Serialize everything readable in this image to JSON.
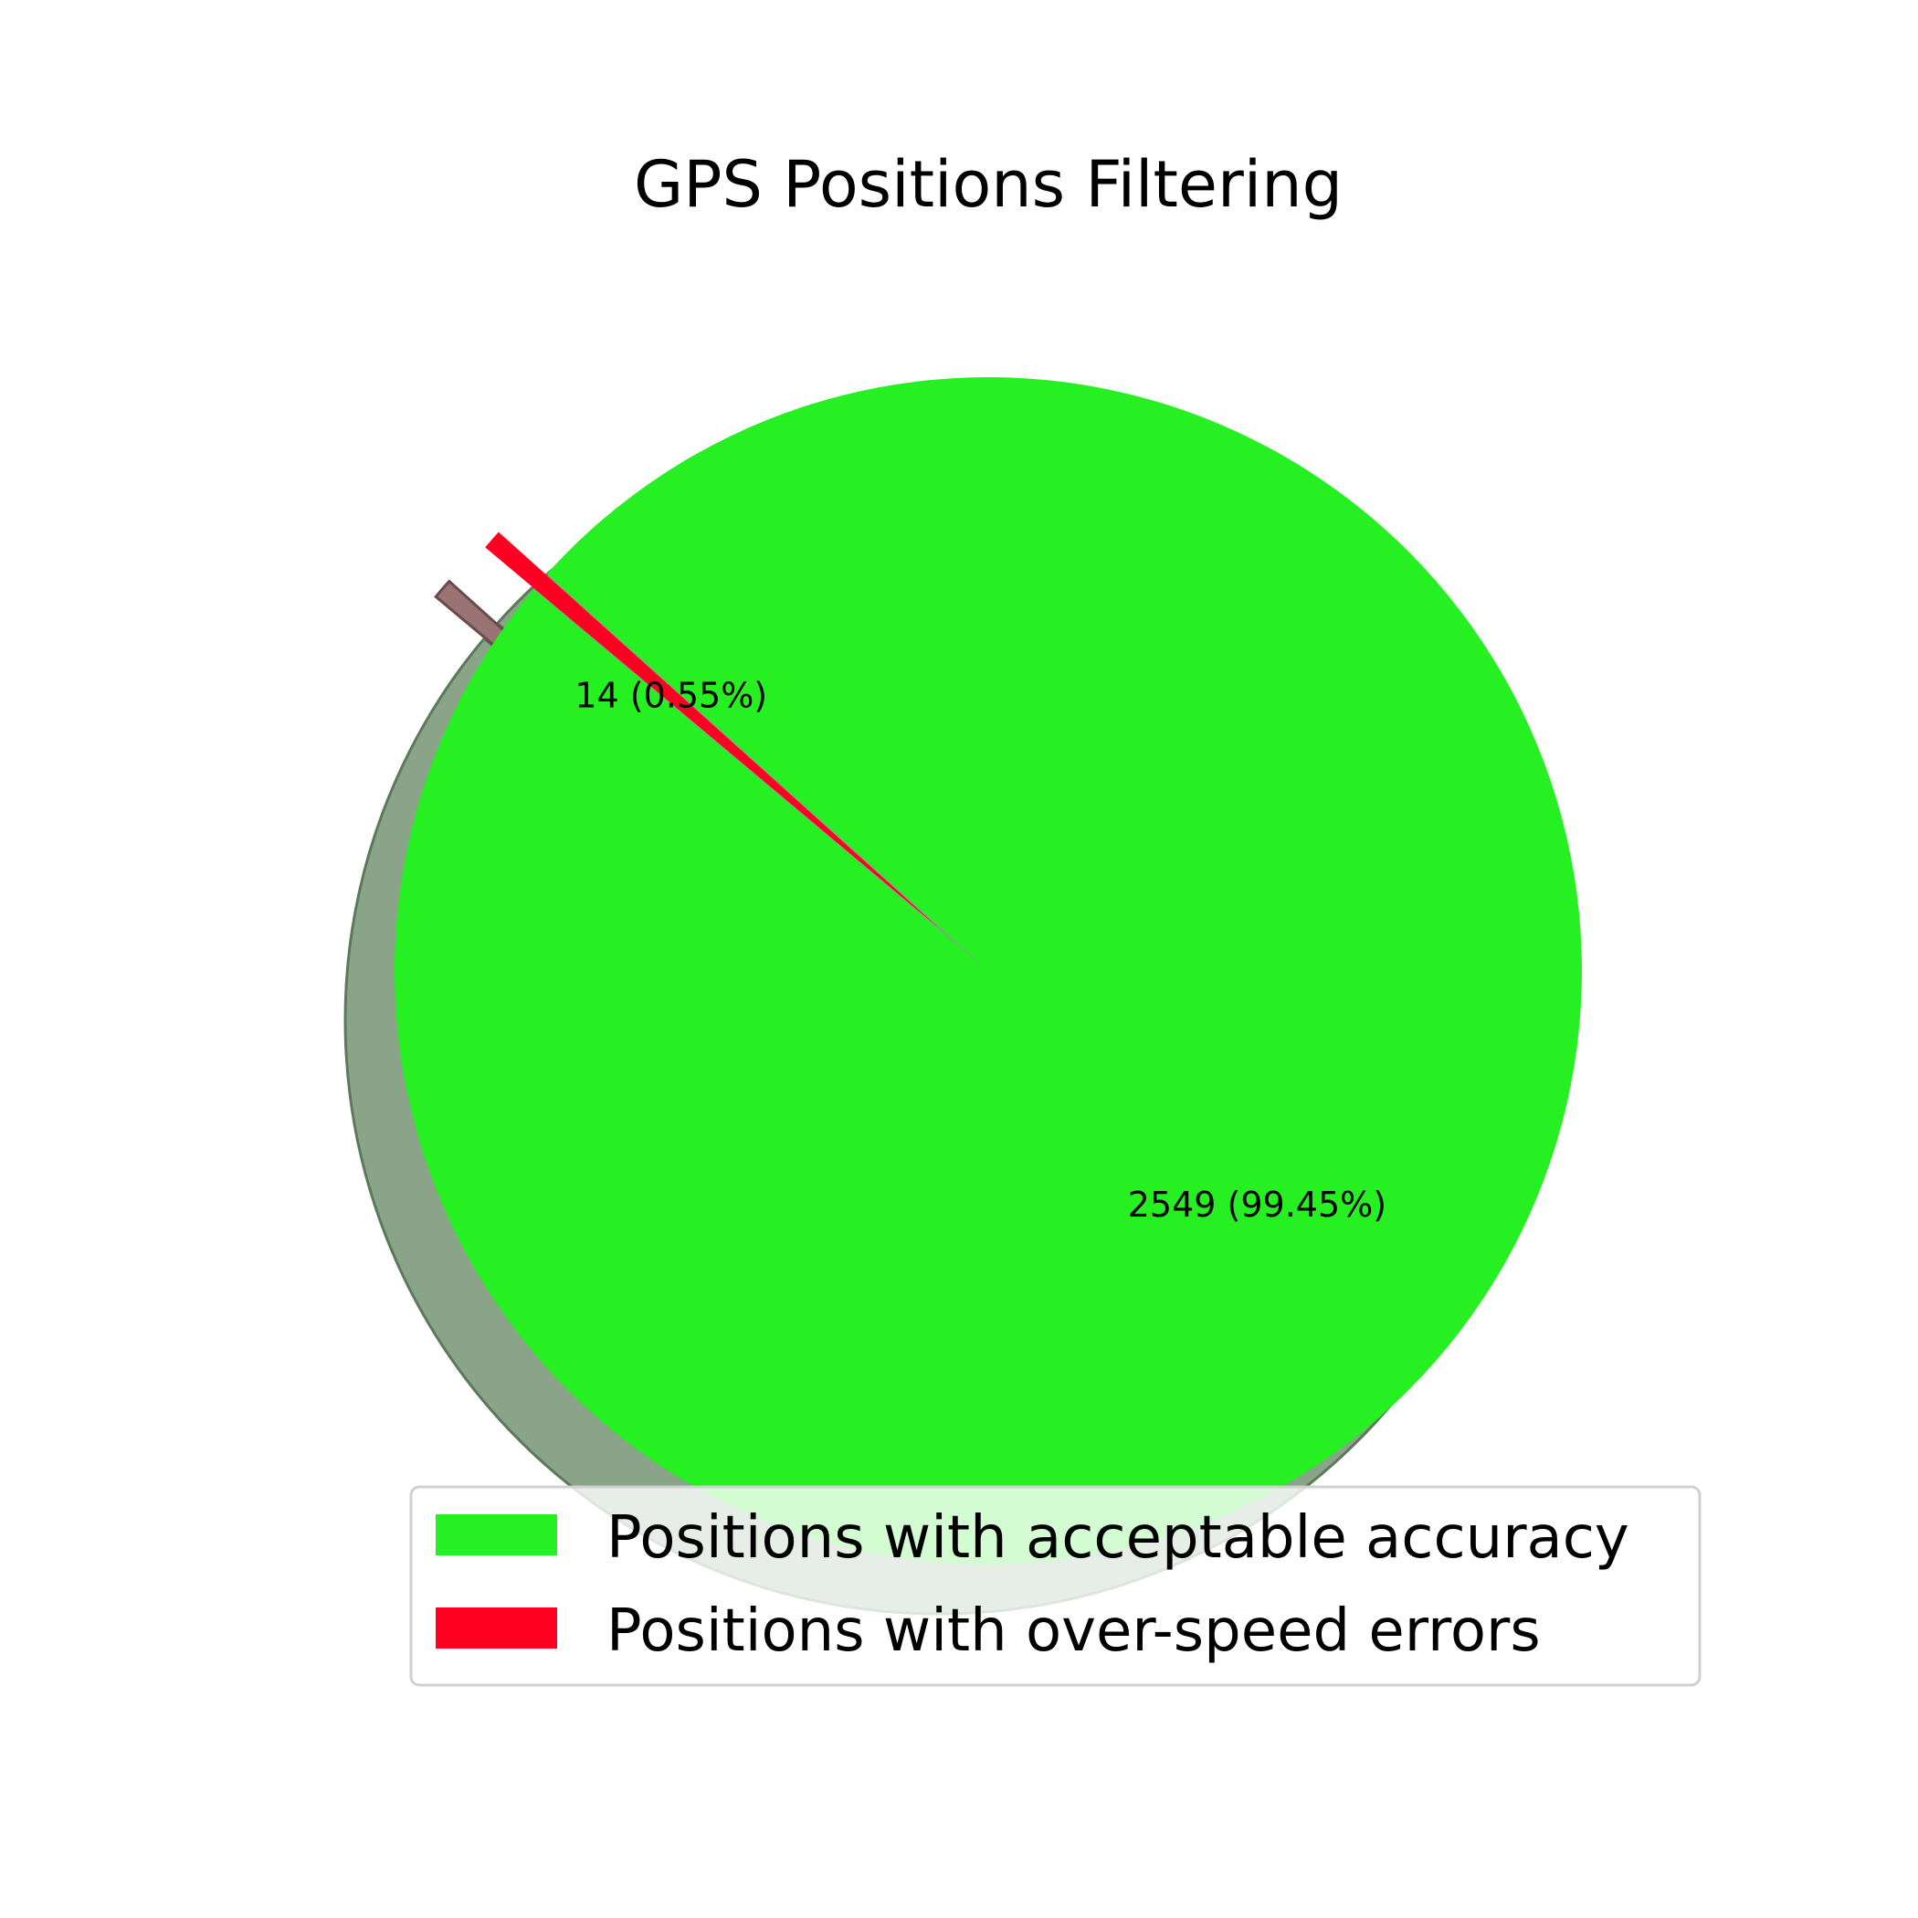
{
  "chart_data": {
    "type": "pie",
    "title": "GPS Positions Filtering",
    "slices": [
      {
        "name": "Positions with acceptable accuracy",
        "value": 2549,
        "label": "2549 (99.45%)",
        "color": "#26ef22",
        "exploded": false
      },
      {
        "name": "Positions with over-speed errors",
        "value": 14,
        "label": "14 (0.55%)",
        "color": "#ff0022",
        "exploded": true
      }
    ],
    "shadow": true,
    "legend": {
      "placement": "lower-right",
      "entries": [
        "Positions with acceptable accuracy",
        "Positions with over-speed errors"
      ]
    }
  }
}
